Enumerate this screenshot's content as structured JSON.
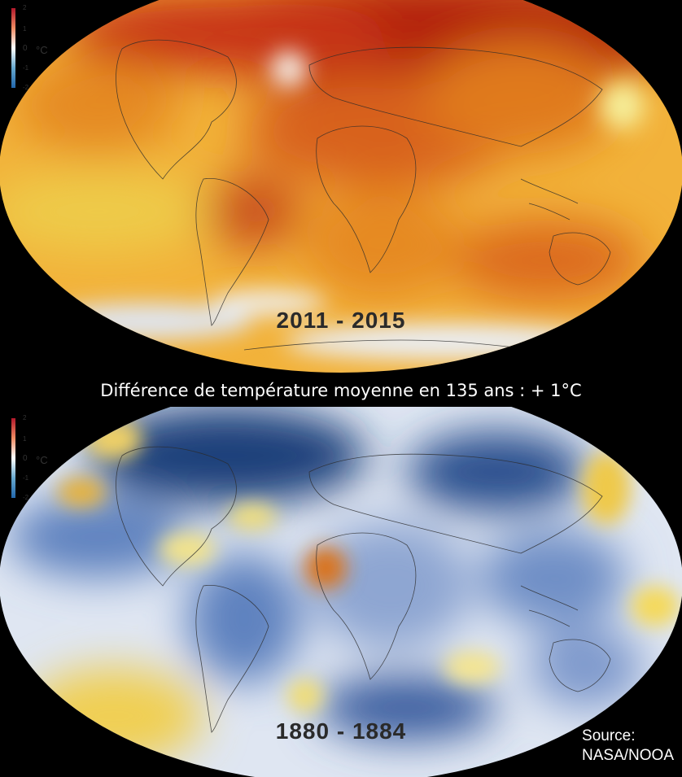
{
  "top_map": {
    "period": "2011  -  2015",
    "colors": {
      "base": "#f2b23a",
      "hot": "#b3200e",
      "warm": "#e07a1c",
      "cool": "#e8edf5",
      "edge": "#e8c74a"
    }
  },
  "bottom_map": {
    "period": "1880  -  1884",
    "colors": {
      "base": "#dfe6f2",
      "cold": "#1f3f7a",
      "blue": "#5f82bf",
      "warm": "#f3d24a",
      "hot": "#d9731c"
    }
  },
  "legend": {
    "ticks": [
      "2",
      "1",
      "0",
      "-1",
      "-2"
    ],
    "unit": "°C",
    "colors": {
      "max": "#b2182b",
      "mid": "#ffffff",
      "min": "#2166ac"
    }
  },
  "caption": "Différence de température moyenne en 135 ans : + 1°C",
  "source": {
    "line1": "Source:",
    "line2": "NASA/NOOA"
  }
}
